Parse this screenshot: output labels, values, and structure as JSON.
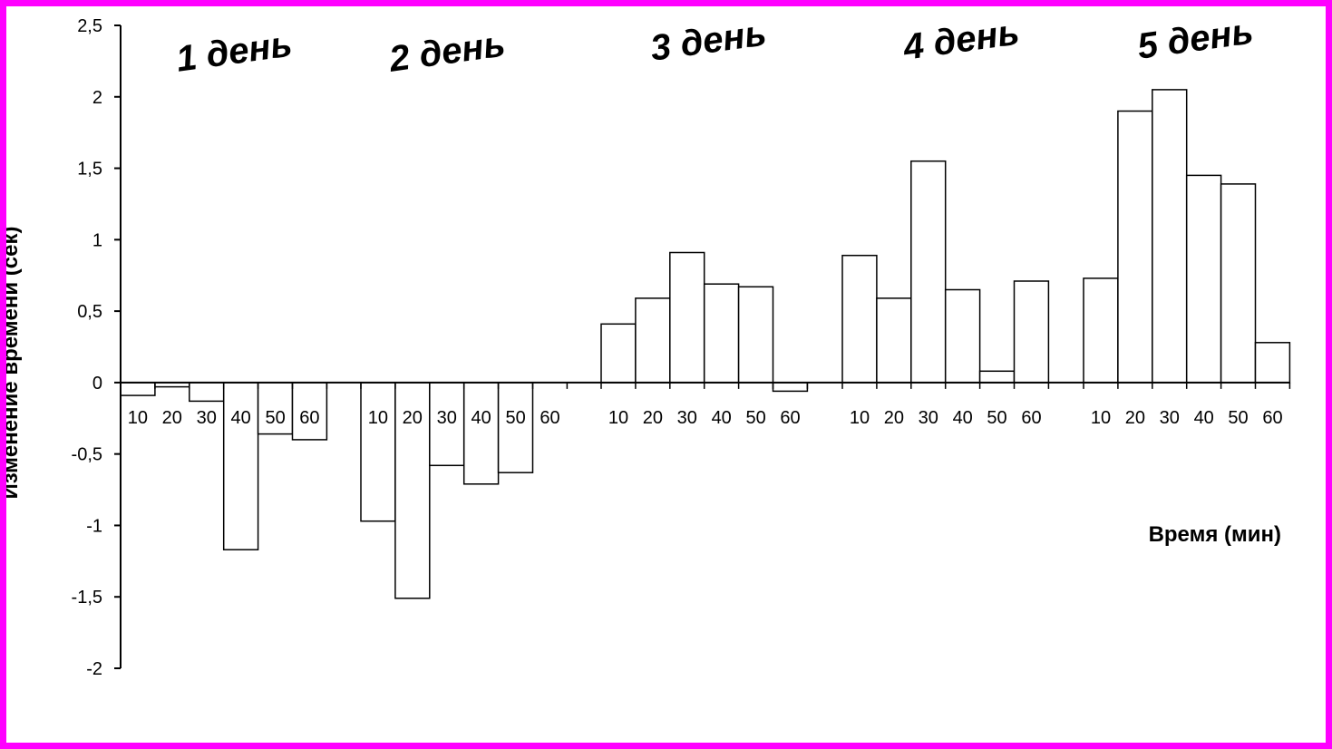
{
  "chart_data": {
    "type": "bar",
    "xlabel": "Время (мин)",
    "ylabel": "Изменение времени (сек)",
    "ylim": [
      -2,
      2.5
    ],
    "yticks": [
      2.5,
      2,
      1.5,
      1,
      0.5,
      0,
      -0.5,
      -1,
      -1.5,
      -2
    ],
    "ytick_labels": [
      "2,5",
      "2",
      "1,5",
      "1",
      "0,5",
      "0",
      "-0,5",
      "-1",
      "-1,5",
      "-2"
    ],
    "grid": false,
    "legend": "none",
    "categories": [
      "10",
      "20",
      "30",
      "40",
      "50",
      "60"
    ],
    "groups": [
      {
        "label": "1 день",
        "values": [
          -0.09,
          -0.03,
          -0.13,
          -1.17,
          -0.36,
          -0.4
        ]
      },
      {
        "label": "2 день",
        "values": [
          -0.97,
          -1.51,
          -0.58,
          -0.71,
          -0.63,
          0
        ]
      },
      {
        "label": "3 день",
        "values": [
          0.41,
          0.59,
          0.91,
          0.69,
          0.67,
          -0.06
        ]
      },
      {
        "label": "4 день",
        "values": [
          0.89,
          0.59,
          1.55,
          0.65,
          0.08,
          0.71
        ]
      },
      {
        "label": "5 день",
        "values": [
          0.73,
          1.9,
          2.05,
          1.45,
          1.39,
          0.28
        ]
      }
    ],
    "colors": {
      "frame": "#ff00ff",
      "bar_fill": "#ffffff",
      "bar_stroke": "#000000"
    }
  }
}
